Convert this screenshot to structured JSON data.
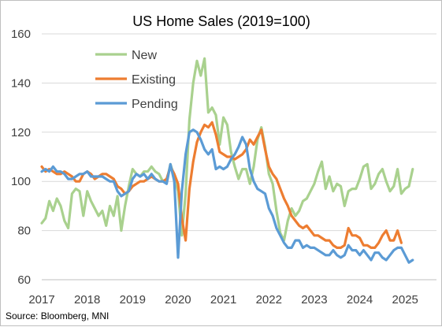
{
  "chart_data": {
    "type": "line",
    "title": "US Home Sales (2019=100)",
    "source": "Source: Bloomberg, MNI",
    "xlabel": "",
    "ylabel": "",
    "ylim": [
      60,
      160
    ],
    "yticks": [
      60,
      80,
      100,
      120,
      140,
      160
    ],
    "xlim": [
      2017,
      2025.7
    ],
    "xticks": [
      2017,
      2018,
      2019,
      2020,
      2021,
      2022,
      2023,
      2024,
      2025
    ],
    "x_tick_labels": [
      "2017",
      "2018",
      "2019",
      "2020",
      "2021",
      "2022",
      "2023",
      "2024",
      "2025"
    ],
    "x_start": 2017.0,
    "grid": "horizontal",
    "legend_position": "top-left",
    "series": [
      {
        "name": "New",
        "color": "#a9d18e",
        "values": [
          83,
          85,
          92,
          88,
          93,
          90,
          84,
          81,
          95,
          97,
          96,
          86,
          96,
          92,
          89,
          86,
          88,
          82,
          90,
          86,
          94,
          80,
          90,
          98,
          105,
          103,
          102,
          104,
          104,
          106,
          104,
          103,
          100,
          100,
          107,
          102,
          96,
          78,
          95,
          125,
          140,
          149,
          143,
          150,
          128,
          130,
          127,
          115,
          126,
          123,
          112,
          106,
          101,
          105,
          105,
          99,
          106,
          117,
          122,
          114,
          103,
          99,
          88,
          79,
          76,
          84,
          89,
          86,
          88,
          92,
          93,
          96,
          99,
          104,
          108,
          97,
          102,
          96,
          99,
          98,
          90,
          96,
          97,
          97,
          101,
          106,
          107,
          97,
          99,
          103,
          105,
          100,
          96,
          98,
          105,
          95,
          97,
          98,
          105
        ]
      },
      {
        "name": "Existing",
        "color": "#ed7d31",
        "values": [
          106,
          104,
          105,
          104,
          103,
          103,
          104,
          103,
          102,
          100,
          100,
          103,
          104,
          103,
          101,
          102,
          103,
          103,
          102,
          101,
          98,
          97,
          95,
          96,
          98,
          99,
          100,
          100,
          101,
          102,
          101,
          100,
          100,
          101,
          106,
          103,
          99,
          85,
          76,
          97,
          108,
          116,
          120,
          123,
          122,
          124,
          119,
          112,
          111,
          110,
          110,
          109,
          110,
          111,
          113,
          117,
          115,
          118,
          121,
          113,
          106,
          103,
          101,
          97,
          93,
          90,
          86,
          84,
          82,
          81,
          82,
          80,
          78,
          78,
          77,
          76,
          76,
          74,
          73,
          73,
          74,
          81,
          78,
          78,
          77,
          74,
          74,
          73,
          73,
          75,
          78,
          80,
          76,
          76,
          80,
          75
        ]
      },
      {
        "name": "Pending",
        "color": "#5b9bd5",
        "values": [
          104,
          105,
          104,
          106,
          104,
          104,
          103,
          101,
          101,
          102,
          103,
          103,
          104,
          102,
          102,
          102,
          102,
          101,
          100,
          100,
          96,
          94,
          95,
          96,
          101,
          103,
          102,
          103,
          101,
          103,
          101,
          100,
          100,
          99,
          107,
          100,
          69,
          96,
          111,
          120,
          121,
          120,
          117,
          113,
          111,
          113,
          105,
          106,
          105,
          106,
          109,
          111,
          114,
          118,
          115,
          105,
          100,
          97,
          96,
          95,
          89,
          86,
          81,
          78,
          75,
          73,
          73,
          76,
          76,
          73,
          74,
          73,
          73,
          72,
          71,
          70,
          70,
          72,
          70,
          69,
          70,
          74,
          72,
          72,
          70,
          72,
          70,
          68,
          71,
          71,
          69,
          68,
          70,
          72,
          73,
          73,
          70,
          67,
          68
        ]
      }
    ]
  }
}
